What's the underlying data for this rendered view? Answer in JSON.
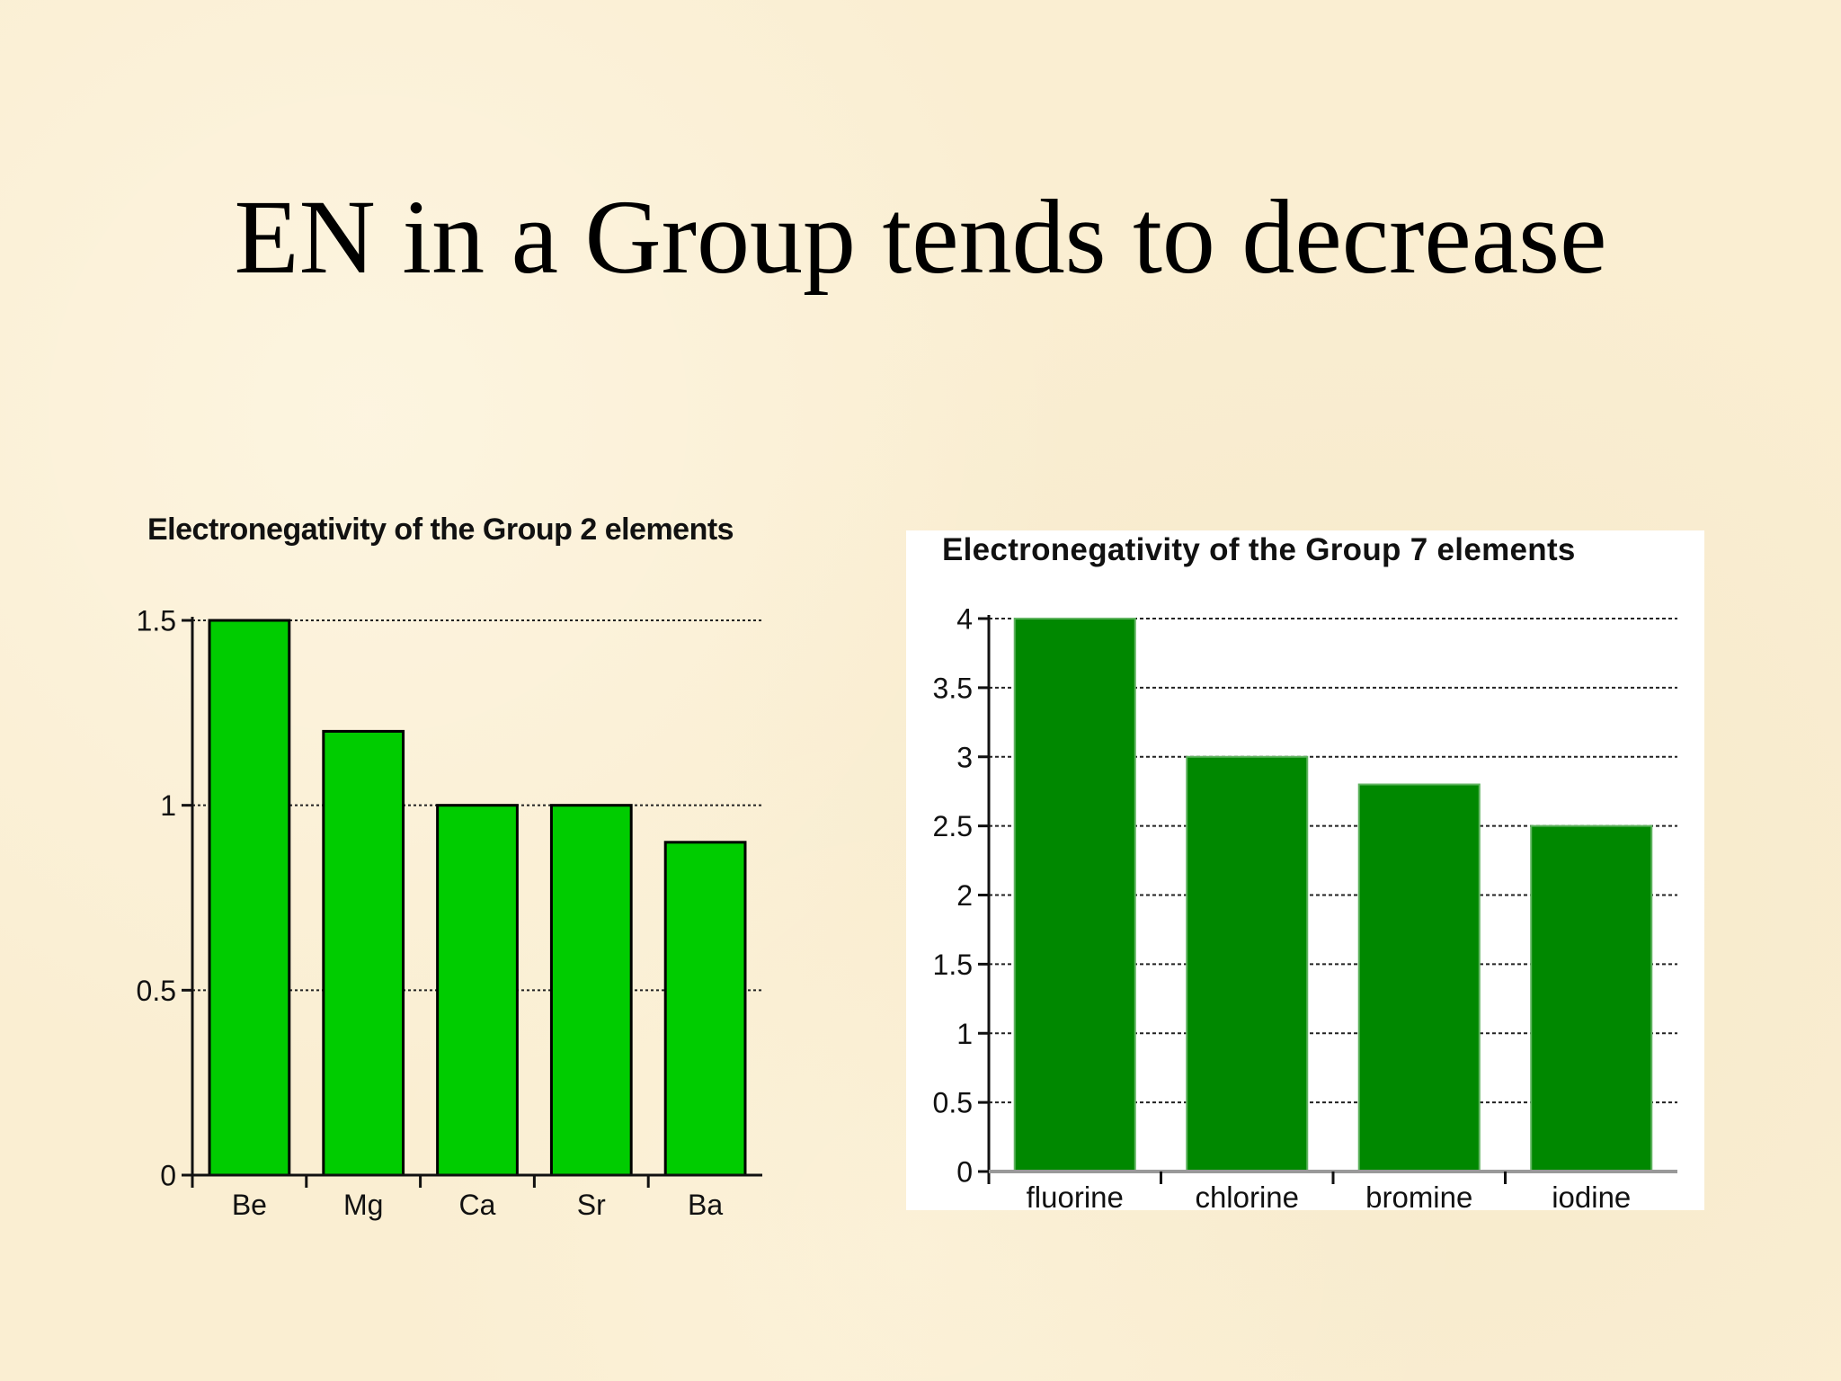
{
  "slide": {
    "title": "EN in a Group tends to decrease",
    "background_color": "#faeed2"
  },
  "chart_data": [
    {
      "type": "bar",
      "title": "Electronegativity of the Group 2 elements",
      "categories": [
        "Be",
        "Mg",
        "Ca",
        "Sr",
        "Ba"
      ],
      "values": [
        1.5,
        1.2,
        1.0,
        1.0,
        0.9
      ],
      "ylim": [
        0,
        1.5
      ],
      "yticks": [
        0,
        0.5,
        1,
        1.5
      ],
      "ytick_labels": [
        "0",
        "0.5",
        "1",
        "1.5"
      ],
      "xlabel": "",
      "ylabel": "",
      "grid": "dotted horizontal",
      "bar_color": "#00cc00",
      "background": "transparent"
    },
    {
      "type": "bar",
      "title": "Electronegativity of the Group 7 elements",
      "categories": [
        "fluorine",
        "chlorine",
        "bromine",
        "iodine"
      ],
      "values": [
        4.0,
        3.0,
        2.8,
        2.5
      ],
      "ylim": [
        0,
        4
      ],
      "yticks": [
        0,
        0.5,
        1,
        1.5,
        2,
        2.5,
        3,
        3.5,
        4
      ],
      "ytick_labels": [
        "0",
        "0.5",
        "1",
        "1.5",
        "2",
        "2.5",
        "3",
        "3.5",
        "4"
      ],
      "xlabel": "",
      "ylabel": "",
      "grid": "dotted horizontal",
      "bar_color": "#008800",
      "background": "#ffffff"
    }
  ]
}
